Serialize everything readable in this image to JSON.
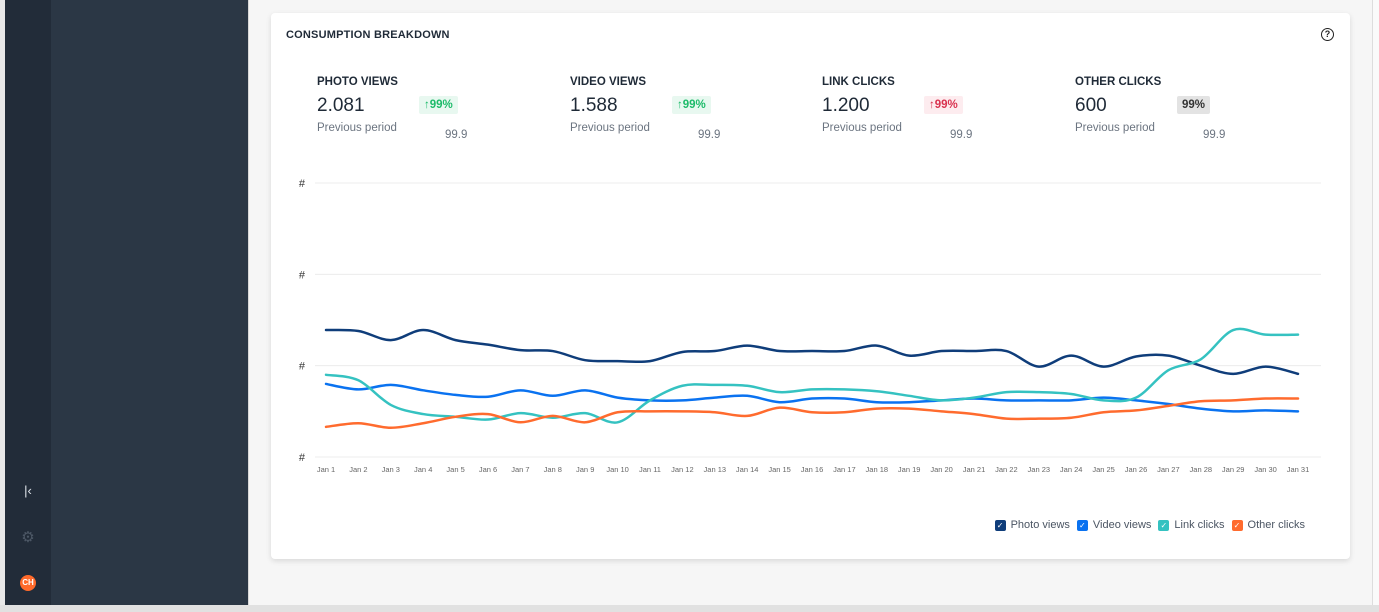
{
  "rail": {
    "collapse_icon": "collapse-left-icon",
    "settings_icon": "gear-icon",
    "avatar_initials": "CH"
  },
  "card": {
    "title": "CONSUMPTION BREAKDOWN",
    "help_icon": "question-circle-icon"
  },
  "metrics": [
    {
      "label": "PHOTO VIEWS",
      "value": "2.081",
      "badge": "↑99%",
      "badge_type": "positive",
      "prev_label": "Previous period",
      "prev_value": "99.9"
    },
    {
      "label": "VIDEO VIEWS",
      "value": "1.588",
      "badge": "↑99%",
      "badge_type": "positive",
      "prev_label": "Previous period",
      "prev_value": "99.9"
    },
    {
      "label": "LINK CLICKS",
      "value": "1.200",
      "badge": "↑99%",
      "badge_type": "negative",
      "prev_label": "Previous period",
      "prev_value": "99.9"
    },
    {
      "label": "OTHER CLICKS",
      "value": "600",
      "badge": "99%",
      "badge_type": "neutral",
      "prev_label": "Previous period",
      "prev_value": "99.9"
    }
  ],
  "chart_data": {
    "type": "line",
    "title": "",
    "xlabel": "",
    "ylabel": "",
    "ylim": [
      0,
      3
    ],
    "y_tick_labels": [
      "#",
      "#",
      "#",
      "#"
    ],
    "grid": true,
    "legend_placement": "bottom-right",
    "x": [
      "Jan 1",
      "Jan 2",
      "Jan 3",
      "Jan 4",
      "Jan 5",
      "Jan 6",
      "Jan 7",
      "Jan 8",
      "Jan 9",
      "Jan 10",
      "Jan 11",
      "Jan 12",
      "Jan 13",
      "Jan 14",
      "Jan 15",
      "Jan 16",
      "Jan 17",
      "Jan 18",
      "Jan 19",
      "Jan 20",
      "Jan 21",
      "Jan 22",
      "Jan 23",
      "Jan 24",
      "Jan 25",
      "Jan 26",
      "Jan 27",
      "Jan 28",
      "Jan 29",
      "Jan 30",
      "Jan 31"
    ],
    "series": [
      {
        "name": "Photo views",
        "color": "#0f3d7a",
        "values": [
          1.39,
          1.38,
          1.28,
          1.39,
          1.28,
          1.23,
          1.17,
          1.16,
          1.06,
          1.05,
          1.05,
          1.15,
          1.16,
          1.22,
          1.16,
          1.16,
          1.16,
          1.22,
          1.11,
          1.16,
          1.16,
          1.16,
          0.99,
          1.11,
          0.99,
          1.1,
          1.11,
          1.0,
          0.91,
          0.99,
          0.91
        ]
      },
      {
        "name": "Video views",
        "color": "#0a72f0",
        "values": [
          0.8,
          0.74,
          0.79,
          0.73,
          0.68,
          0.66,
          0.73,
          0.67,
          0.73,
          0.65,
          0.62,
          0.62,
          0.65,
          0.67,
          0.6,
          0.64,
          0.64,
          0.6,
          0.6,
          0.62,
          0.64,
          0.62,
          0.62,
          0.62,
          0.65,
          0.62,
          0.58,
          0.53,
          0.5,
          0.51,
          0.5
        ]
      },
      {
        "name": "Link clicks",
        "color": "#35c2c1",
        "values": [
          0.9,
          0.84,
          0.57,
          0.47,
          0.44,
          0.41,
          0.48,
          0.43,
          0.48,
          0.38,
          0.62,
          0.78,
          0.79,
          0.78,
          0.71,
          0.74,
          0.74,
          0.72,
          0.67,
          0.62,
          0.65,
          0.71,
          0.71,
          0.69,
          0.62,
          0.65,
          0.95,
          1.07,
          1.39,
          1.34,
          1.34
        ]
      },
      {
        "name": "Other clicks",
        "color": "#ff6b2e",
        "values": [
          0.33,
          0.37,
          0.32,
          0.37,
          0.44,
          0.47,
          0.38,
          0.45,
          0.38,
          0.49,
          0.5,
          0.5,
          0.49,
          0.45,
          0.54,
          0.49,
          0.49,
          0.53,
          0.53,
          0.5,
          0.47,
          0.42,
          0.42,
          0.43,
          0.49,
          0.51,
          0.56,
          0.61,
          0.62,
          0.64,
          0.64
        ]
      }
    ]
  }
}
